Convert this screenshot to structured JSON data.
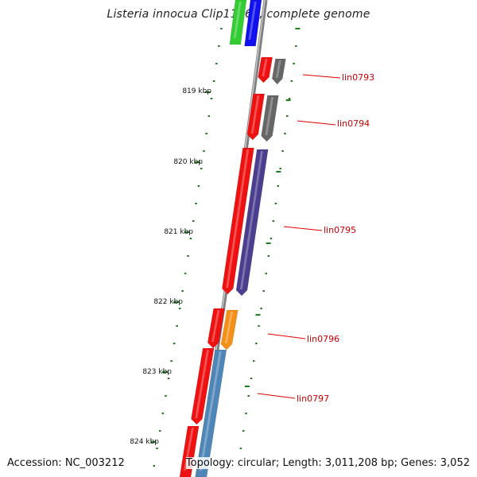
{
  "title": "Listeria innocua Clip11262, complete genome",
  "footer": {
    "accession": "Accession: NC_003212",
    "summary": "Topology: circular; Length: 3,011,208 bp; Genes: 3,052"
  },
  "colors": {
    "backbone": "#7f7f7f",
    "tick": "#1e7d1e",
    "gene_label": "#cc0000",
    "leader": "#dd0000",
    "cds": "#ee1111",
    "gray": "#666666",
    "purple": "#4b3e8e",
    "orange": "#f39019",
    "steelblue": "#4f86b8",
    "green": "#33cc33",
    "blue": "#1111ee"
  },
  "scale_labels": [
    "819 kbp",
    "820 kbp",
    "821 kbp",
    "822 kbp",
    "823 kbp",
    "824 kbp"
  ],
  "genes": [
    "lin0793",
    "lin0794",
    "lin0795",
    "lin0796",
    "lin0797"
  ]
}
